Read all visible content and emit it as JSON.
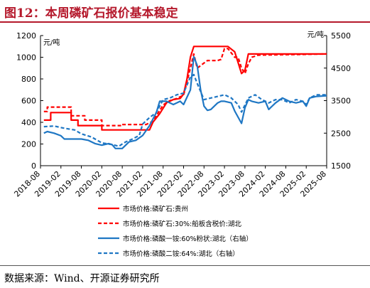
{
  "figure": {
    "title": "图12：本周磷矿石报价基本稳定",
    "source": "数据来源：Wind、开源证券研究所"
  },
  "colors": {
    "accent": "#b5192c",
    "red": "#ff0000",
    "blue": "#1f77c4"
  },
  "chart_data": {
    "type": "line",
    "left_unit": "元/吨",
    "right_unit": "元/吨",
    "left_ylim": [
      0,
      1200
    ],
    "left_ticks": [
      "0",
      "200",
      "400",
      "600",
      "800",
      "1000",
      "1200"
    ],
    "right_ylim": [
      1500,
      5500
    ],
    "right_ticks": [
      "1500",
      "2500",
      "3500",
      "4500",
      "5500"
    ],
    "xlim": [
      "2018-08",
      "2025-08"
    ],
    "x_ticks": [
      "2018-08",
      "2019-02",
      "2019-08",
      "2020-02",
      "2020-08",
      "2021-02",
      "2021-08",
      "2022-02",
      "2022-08",
      "2023-02",
      "2023-08",
      "2024-02",
      "2024-08",
      "2025-02",
      "2025-08"
    ],
    "grid": false,
    "legend_position": "bottom",
    "series": [
      {
        "name": "市场价格:磷矿石:贵州",
        "axis": "left",
        "style": "solid",
        "color": "#ff0000",
        "points": [
          [
            "2018-09",
            420
          ],
          [
            "2018-11",
            420
          ],
          [
            "2018-11",
            490
          ],
          [
            "2019-05",
            490
          ],
          [
            "2019-05",
            420
          ],
          [
            "2019-07",
            420
          ],
          [
            "2019-07",
            370
          ],
          [
            "2020-02",
            370
          ],
          [
            "2020-02",
            330
          ],
          [
            "2021-04",
            330
          ],
          [
            "2021-05",
            400
          ],
          [
            "2021-07",
            480
          ],
          [
            "2021-09",
            580
          ],
          [
            "2021-11",
            610
          ],
          [
            "2022-01",
            620
          ],
          [
            "2022-02",
            660
          ],
          [
            "2022-03",
            800
          ],
          [
            "2022-04",
            1000
          ],
          [
            "2022-05",
            1100
          ],
          [
            "2023-03",
            1100
          ],
          [
            "2023-05",
            1050
          ],
          [
            "2023-06",
            950
          ],
          [
            "2023-07",
            850
          ],
          [
            "2023-08",
            880
          ],
          [
            "2023-09",
            1030
          ],
          [
            "2025-08",
            1030
          ]
        ]
      },
      {
        "name": "市场价格:磷矿石:30%:船板含税价:湖北",
        "axis": "left",
        "style": "dashed",
        "color": "#ff0000",
        "points": [
          [
            "2018-09",
            500
          ],
          [
            "2018-10",
            500
          ],
          [
            "2018-10",
            540
          ],
          [
            "2019-05",
            540
          ],
          [
            "2019-05",
            460
          ],
          [
            "2019-09",
            460
          ],
          [
            "2019-09",
            420
          ],
          [
            "2020-02",
            420
          ],
          [
            "2020-02",
            370
          ],
          [
            "2020-08",
            370
          ],
          [
            "2020-08",
            380
          ],
          [
            "2021-03",
            380
          ],
          [
            "2021-05",
            410
          ],
          [
            "2021-08",
            560
          ],
          [
            "2021-10",
            600
          ],
          [
            "2021-12",
            620
          ],
          [
            "2022-02",
            650
          ],
          [
            "2022-04",
            900
          ],
          [
            "2022-05",
            1030
          ],
          [
            "2022-06",
            900
          ],
          [
            "2022-09",
            970
          ],
          [
            "2022-09",
            970
          ],
          [
            "2022-12",
            970
          ],
          [
            "2023-01",
            980
          ],
          [
            "2023-02",
            1080
          ],
          [
            "2023-03",
            1080
          ],
          [
            "2023-05",
            1000
          ],
          [
            "2023-06",
            1000
          ],
          [
            "2023-07",
            900
          ],
          [
            "2023-08",
            850
          ],
          [
            "2023-09",
            940
          ],
          [
            "2023-10",
            1000
          ],
          [
            "2023-12",
            1020
          ],
          [
            "2025-08",
            1030
          ]
        ]
      },
      {
        "name": "市场价格:磷酸一铵:60%粉状:湖北（右轴）",
        "axis": "right",
        "style": "solid",
        "color": "#1f77c4",
        "points": [
          [
            "2018-09",
            2500
          ],
          [
            "2018-10",
            2550
          ],
          [
            "2018-12",
            2500
          ],
          [
            "2019-02",
            2420
          ],
          [
            "2019-03",
            2320
          ],
          [
            "2019-06",
            2320
          ],
          [
            "2019-08",
            2320
          ],
          [
            "2019-10",
            2280
          ],
          [
            "2019-12",
            2180
          ],
          [
            "2020-02",
            2130
          ],
          [
            "2020-04",
            2180
          ],
          [
            "2020-05",
            2150
          ],
          [
            "2020-06",
            2030
          ],
          [
            "2020-08",
            2030
          ],
          [
            "2020-10",
            2230
          ],
          [
            "2020-12",
            2280
          ],
          [
            "2021-02",
            2430
          ],
          [
            "2021-04",
            2730
          ],
          [
            "2021-06",
            3130
          ],
          [
            "2021-07",
            3480
          ],
          [
            "2021-09",
            3480
          ],
          [
            "2021-11",
            3380
          ],
          [
            "2022-01",
            3480
          ],
          [
            "2022-02",
            3380
          ],
          [
            "2022-04",
            3830
          ],
          [
            "2022-05",
            4850
          ],
          [
            "2022-06",
            4580
          ],
          [
            "2022-07",
            3830
          ],
          [
            "2022-08",
            3330
          ],
          [
            "2022-09",
            3200
          ],
          [
            "2022-10",
            3230
          ],
          [
            "2022-12",
            3430
          ],
          [
            "2023-01",
            3480
          ],
          [
            "2023-02",
            3480
          ],
          [
            "2023-04",
            3430
          ],
          [
            "2023-05",
            3180
          ],
          [
            "2023-07",
            2800
          ],
          [
            "2023-08",
            3280
          ],
          [
            "2023-09",
            3530
          ],
          [
            "2023-10",
            3480
          ],
          [
            "2023-12",
            3430
          ],
          [
            "2024-02",
            3480
          ],
          [
            "2024-03",
            3230
          ],
          [
            "2024-05",
            3430
          ],
          [
            "2024-07",
            3580
          ],
          [
            "2024-09",
            3480
          ],
          [
            "2024-11",
            3430
          ],
          [
            "2025-01",
            3480
          ],
          [
            "2025-02",
            3330
          ],
          [
            "2025-03",
            3580
          ],
          [
            "2025-05",
            3630
          ],
          [
            "2025-08",
            3650
          ]
        ]
      },
      {
        "name": "市场价格:磷酸二铵:64%:湖北（右轴）",
        "axis": "right",
        "style": "dashed",
        "color": "#1f77c4",
        "points": [
          [
            "2018-09",
            2700
          ],
          [
            "2018-12",
            2720
          ],
          [
            "2019-03",
            2650
          ],
          [
            "2019-06",
            2600
          ],
          [
            "2019-08",
            2480
          ],
          [
            "2019-11",
            2380
          ],
          [
            "2020-02",
            2200
          ],
          [
            "2020-05",
            2150
          ],
          [
            "2020-07",
            2100
          ],
          [
            "2020-09",
            2230
          ],
          [
            "2020-11",
            2320
          ],
          [
            "2021-01",
            2430
          ],
          [
            "2021-02",
            2780
          ],
          [
            "2021-04",
            2980
          ],
          [
            "2021-06",
            3130
          ],
          [
            "2021-08",
            3530
          ],
          [
            "2021-10",
            3580
          ],
          [
            "2021-12",
            3680
          ],
          [
            "2022-02",
            3730
          ],
          [
            "2022-04",
            4230
          ],
          [
            "2022-05",
            4300
          ],
          [
            "2022-06",
            4030
          ],
          [
            "2022-07",
            3780
          ],
          [
            "2022-08",
            3530
          ],
          [
            "2022-10",
            3580
          ],
          [
            "2022-12",
            3630
          ],
          [
            "2023-02",
            3680
          ],
          [
            "2023-04",
            3580
          ],
          [
            "2023-06",
            3380
          ],
          [
            "2023-07",
            3150
          ],
          [
            "2023-09",
            3580
          ],
          [
            "2023-11",
            3680
          ],
          [
            "2024-01",
            3530
          ],
          [
            "2024-03",
            3430
          ],
          [
            "2024-05",
            3530
          ],
          [
            "2024-07",
            3530
          ],
          [
            "2024-09",
            3430
          ],
          [
            "2024-11",
            3530
          ],
          [
            "2025-01",
            3480
          ],
          [
            "2025-02",
            3380
          ],
          [
            "2025-03",
            3580
          ],
          [
            "2025-05",
            3680
          ],
          [
            "2025-08",
            3680
          ]
        ]
      }
    ]
  }
}
